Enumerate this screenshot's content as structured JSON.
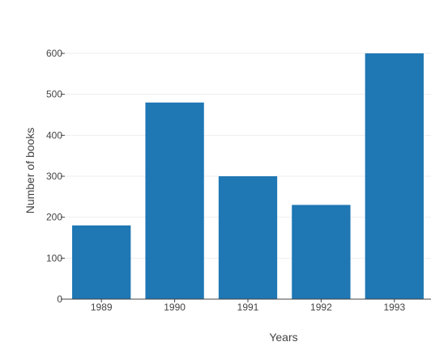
{
  "chart_data": {
    "type": "bar",
    "categories": [
      "1989",
      "1990",
      "1991",
      "1992",
      "1993"
    ],
    "values": [
      180,
      480,
      300,
      230,
      600
    ],
    "title": "",
    "xlabel": "Years",
    "ylabel": "Number of books",
    "ylim": [
      0,
      600
    ],
    "yticks": [
      0,
      100,
      200,
      300,
      400,
      500,
      600
    ],
    "grid": true,
    "legend": "none",
    "bar_color": "#1f77b4",
    "grid_color": "#eeeeee",
    "axis_color": "#444444"
  }
}
